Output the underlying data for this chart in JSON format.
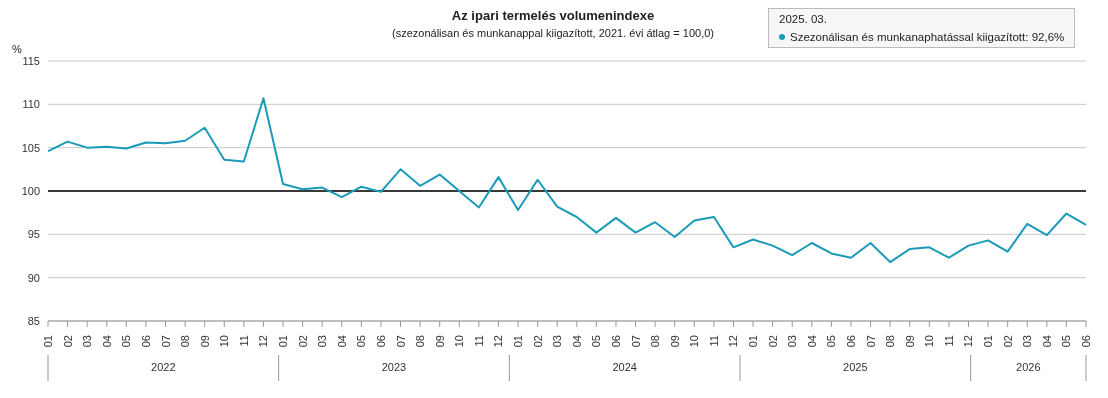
{
  "chart_data": {
    "type": "line",
    "title": "Az ipari termelés volumenindexe",
    "subtitle": "(szezonálisan és munkanappal kiigazított, 2021. évi átlag = 100,0)",
    "ylabel": "%",
    "annotations": [
      "2025. 03.",
      "Szezonálisan és munkanaphatással kiigazított: 92,6%",
      "2022",
      "2023",
      "2024",
      "2025",
      "2026"
    ],
    "categories": [
      "01",
      "02",
      "03",
      "04",
      "05",
      "06",
      "07",
      "08",
      "09",
      "10",
      "11",
      "12",
      "01",
      "02",
      "03",
      "04",
      "05",
      "06",
      "07",
      "08",
      "09",
      "10",
      "11",
      "12",
      "01",
      "02",
      "03",
      "04",
      "05",
      "06",
      "07",
      "08",
      "09",
      "10",
      "11",
      "12",
      "01",
      "02",
      "03",
      "04",
      "05",
      "06",
      "07",
      "08",
      "09",
      "10",
      "11",
      "12",
      "01",
      "02",
      "03",
      "04",
      "05",
      "06"
    ],
    "series": [
      {
        "color": "#1a9bb8",
        "values": [
          104.6,
          105.7,
          105.0,
          105.1,
          104.9,
          105.6,
          105.5,
          105.8,
          107.3,
          103.6,
          103.4,
          110.7,
          100.8,
          100.2,
          100.4,
          99.3,
          100.5,
          99.9,
          102.5,
          100.6,
          101.9,
          100.0,
          98.1,
          101.6,
          97.8,
          101.3,
          98.2,
          97.0,
          95.2,
          96.9,
          95.2,
          96.4,
          94.7,
          96.6,
          97.0,
          93.5,
          94.4,
          93.7,
          92.6,
          94.0,
          92.8,
          92.3,
          94.0,
          91.8,
          93.3,
          93.5,
          92.3,
          93.7,
          94.3,
          93.0,
          96.2,
          94.9,
          97.4,
          96.1
        ]
      }
    ],
    "ylim": [
      85,
      115
    ],
    "yticks": [
      85,
      90,
      95,
      100,
      105,
      110,
      115
    ],
    "ref_lines": [
      {
        "axis": "y",
        "value": 100,
        "color": "#000000"
      }
    ],
    "grid": "y",
    "marker": "none",
    "line_style": "solid"
  }
}
